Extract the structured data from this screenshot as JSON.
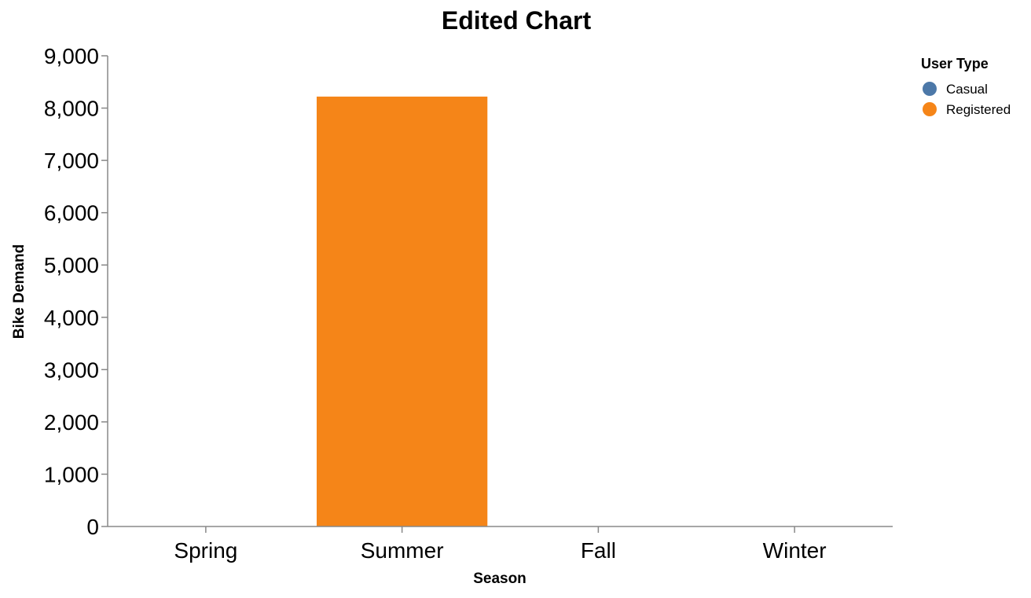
{
  "chart_data": {
    "type": "bar",
    "title": "Edited Chart",
    "xlabel": "Season",
    "ylabel": "Bike Demand",
    "categories": [
      "Spring",
      "Summer",
      "Fall",
      "Winter"
    ],
    "ylim": [
      0,
      9000
    ],
    "yticks": [
      0,
      1000,
      2000,
      3000,
      4000,
      5000,
      6000,
      7000,
      8000,
      9000
    ],
    "ytick_labels": [
      "0",
      "1,000",
      "2,000",
      "3,000",
      "4,000",
      "5,000",
      "6,000",
      "7,000",
      "8,000",
      "9,000"
    ],
    "grid": false,
    "legend": {
      "title": "User Type",
      "position": "top-right",
      "entries": [
        {
          "name": "Casual",
          "color": "#4c78a8"
        },
        {
          "name": "Registered",
          "color": "#f58518"
        }
      ]
    },
    "series": [
      {
        "name": "Casual",
        "color": "#4c78a8",
        "values": [
          0,
          0,
          0,
          0
        ]
      },
      {
        "name": "Registered",
        "color": "#f58518",
        "values": [
          0,
          8220,
          0,
          0
        ]
      }
    ]
  }
}
